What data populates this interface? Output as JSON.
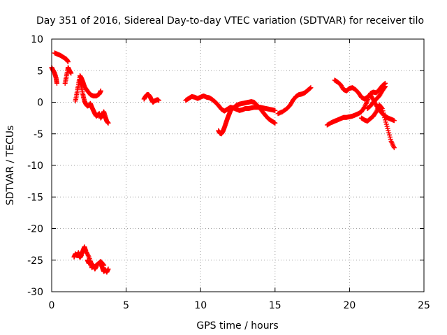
{
  "chart_data": {
    "type": "scatter",
    "title": "Day 351 of 2016, Sidereal Day-to-day VTEC variation (SDTVAR) for receiver tilo",
    "xlabel": "GPS time / hours",
    "ylabel": "SDTVAR / TECUs",
    "xlim": [
      0,
      25
    ],
    "ylim": [
      -30,
      10
    ],
    "xticks": [
      0,
      5,
      10,
      15,
      20,
      25
    ],
    "yticks": [
      -30,
      -25,
      -20,
      -15,
      -10,
      -5,
      0,
      5,
      10
    ],
    "grid": true,
    "marker": "+",
    "color": "#ff0000",
    "series": [
      {
        "name": "s1",
        "x": [
          0.0,
          0.1,
          0.2,
          0.3,
          0.35
        ],
        "y": [
          5.5,
          5.0,
          4.6,
          3.8,
          3.0
        ]
      },
      {
        "name": "s2",
        "x": [
          0.2,
          0.4,
          0.6,
          0.8,
          1.0,
          1.1
        ],
        "y": [
          7.8,
          7.6,
          7.4,
          7.1,
          6.8,
          6.4
        ]
      },
      {
        "name": "s3",
        "x": [
          0.9,
          1.0,
          1.1,
          1.2,
          1.3
        ],
        "y": [
          3.0,
          4.2,
          5.5,
          5.0,
          4.6
        ]
      },
      {
        "name": "s4",
        "x": [
          1.6,
          1.7,
          1.8,
          1.9,
          2.0,
          2.1,
          2.2,
          2.4,
          2.6,
          2.8,
          3.0,
          3.2,
          3.3
        ],
        "y": [
          0.2,
          1.5,
          2.8,
          4.2,
          3.8,
          3.2,
          2.5,
          1.8,
          1.2,
          1.0,
          1.0,
          1.3,
          1.8
        ]
      },
      {
        "name": "s5",
        "x": [
          1.9,
          2.0,
          2.1,
          2.2,
          2.3,
          2.4,
          2.5,
          2.6,
          2.7,
          2.8,
          2.9,
          3.0,
          3.1,
          3.2,
          3.3,
          3.4,
          3.5,
          3.6,
          3.7,
          3.8
        ],
        "y": [
          3.5,
          2.5,
          1.2,
          0.2,
          -0.3,
          -0.6,
          -0.5,
          -0.2,
          -0.8,
          -1.3,
          -1.8,
          -2.2,
          -2.0,
          -1.8,
          -2.5,
          -2.0,
          -1.5,
          -2.3,
          -3.0,
          -3.3
        ]
      },
      {
        "name": "s6",
        "x": [
          1.8,
          1.9,
          2.0,
          2.1,
          2.2,
          2.3,
          2.5,
          2.7,
          2.9,
          3.1,
          3.3,
          3.5
        ],
        "y": [
          -24.2,
          -24.5,
          -24.0,
          -23.5,
          -22.9,
          -23.6,
          -24.5,
          -25.8,
          -26.0,
          -25.6,
          -25.2,
          -25.8
        ]
      },
      {
        "name": "s7",
        "x": [
          1.5,
          1.6,
          1.7,
          1.8,
          1.9,
          2.0
        ],
        "y": [
          -24.5,
          -24.0,
          -24.3,
          -23.8,
          -24.6,
          -24.2
        ]
      },
      {
        "name": "s8",
        "x": [
          2.4,
          2.5,
          2.6,
          2.7,
          2.8,
          2.9,
          3.0
        ],
        "y": [
          -25.0,
          -25.5,
          -25.2,
          -26.2,
          -25.8,
          -26.4,
          -26.0
        ]
      },
      {
        "name": "s9",
        "x": [
          3.3,
          3.4,
          3.5,
          3.6,
          3.7,
          3.8
        ],
        "y": [
          -25.5,
          -26.2,
          -26.8,
          -26.5,
          -26.9,
          -26.4
        ]
      },
      {
        "name": "s10",
        "x": [
          6.2,
          6.3,
          6.4,
          6.5,
          6.6,
          6.7,
          6.8,
          6.9,
          7.0,
          7.1,
          7.2
        ],
        "y": [
          0.5,
          0.9,
          1.2,
          1.2,
          0.9,
          0.4,
          0.0,
          0.2,
          0.3,
          0.4,
          0.3
        ]
      },
      {
        "name": "s11",
        "x": [
          9.0,
          9.2,
          9.4,
          9.6,
          9.8,
          10.0,
          10.2,
          10.4,
          10.6,
          10.8,
          11.0,
          11.2,
          11.4,
          11.6,
          11.8,
          12.0,
          12.2,
          12.4,
          12.6,
          12.8,
          13.0,
          13.2,
          13.4,
          13.6,
          13.8,
          14.0,
          14.2,
          14.4,
          14.6,
          14.8,
          15.0
        ],
        "y": [
          0.3,
          0.6,
          0.9,
          0.8,
          0.6,
          0.8,
          1.0,
          0.8,
          0.7,
          0.4,
          0.0,
          -0.5,
          -1.1,
          -1.4,
          -1.1,
          -0.8,
          -0.9,
          -1.1,
          -1.3,
          -1.2,
          -1.0,
          -1.0,
          -0.9,
          -0.8,
          -0.8,
          -0.8,
          -0.9,
          -1.0,
          -1.1,
          -1.2,
          -1.3
        ]
      },
      {
        "name": "s12",
        "x": [
          11.2,
          11.3,
          11.4,
          11.5,
          11.6,
          11.7,
          11.8,
          11.9,
          12.0,
          12.2,
          12.4,
          12.6,
          12.8,
          13.0,
          13.2,
          13.4,
          13.6,
          13.8,
          14.0,
          14.2,
          14.4,
          14.6,
          14.8,
          15.0
        ],
        "y": [
          -4.5,
          -4.9,
          -5.0,
          -4.6,
          -4.0,
          -3.3,
          -2.6,
          -2.0,
          -1.4,
          -0.9,
          -0.5,
          -0.3,
          -0.2,
          -0.1,
          0.0,
          0.1,
          0.0,
          -0.5,
          -1.0,
          -1.6,
          -2.2,
          -2.7,
          -3.0,
          -3.3
        ]
      },
      {
        "name": "s13",
        "x": [
          15.2,
          15.5,
          15.8,
          16.0,
          16.2,
          16.4,
          16.6,
          16.8,
          17.0,
          17.2,
          17.4
        ],
        "y": [
          -1.8,
          -1.5,
          -1.0,
          -0.5,
          0.3,
          0.9,
          1.2,
          1.3,
          1.5,
          1.9,
          2.3
        ]
      },
      {
        "name": "s14",
        "x": [
          18.5,
          18.8,
          19.0,
          19.2,
          19.4,
          19.6,
          19.8,
          20.0,
          20.2,
          20.4,
          20.6,
          20.8,
          21.0,
          21.2,
          21.4,
          21.6,
          21.8,
          22.0,
          22.2,
          22.4
        ],
        "y": [
          -3.6,
          -3.2,
          -3.0,
          -2.8,
          -2.6,
          -2.4,
          -2.4,
          -2.3,
          -2.2,
          -2.0,
          -1.8,
          -1.5,
          -0.8,
          0.2,
          1.4,
          1.6,
          1.5,
          2.0,
          2.6,
          3.0
        ]
      },
      {
        "name": "s15",
        "x": [
          19.0,
          19.2,
          19.4,
          19.6,
          19.8,
          20.0,
          20.2,
          20.4,
          20.6,
          20.8,
          21.0,
          21.2,
          21.4,
          21.6,
          21.8,
          22.0,
          22.2,
          22.4,
          22.6,
          22.8,
          23.0
        ],
        "y": [
          3.5,
          3.2,
          2.8,
          2.0,
          1.8,
          2.2,
          2.3,
          2.0,
          1.5,
          0.8,
          0.5,
          0.8,
          1.2,
          0.4,
          -0.5,
          -1.2,
          -1.8,
          -2.2,
          -2.5,
          -2.7,
          -2.9
        ]
      },
      {
        "name": "s16",
        "x": [
          20.8,
          21.0,
          21.2,
          21.4,
          21.6,
          21.8,
          22.0,
          22.2,
          22.4,
          22.6,
          22.8,
          23.0
        ],
        "y": [
          -2.5,
          -2.8,
          -3.0,
          -2.6,
          -2.2,
          -1.5,
          -0.4,
          -1.0,
          -2.8,
          -4.5,
          -6.2,
          -7.2
        ]
      },
      {
        "name": "s17",
        "x": [
          21.2,
          21.4,
          21.6,
          21.8,
          22.0,
          22.2,
          22.4
        ],
        "y": [
          -1.0,
          -0.6,
          0.0,
          0.5,
          1.0,
          1.8,
          2.5
        ]
      }
    ]
  }
}
